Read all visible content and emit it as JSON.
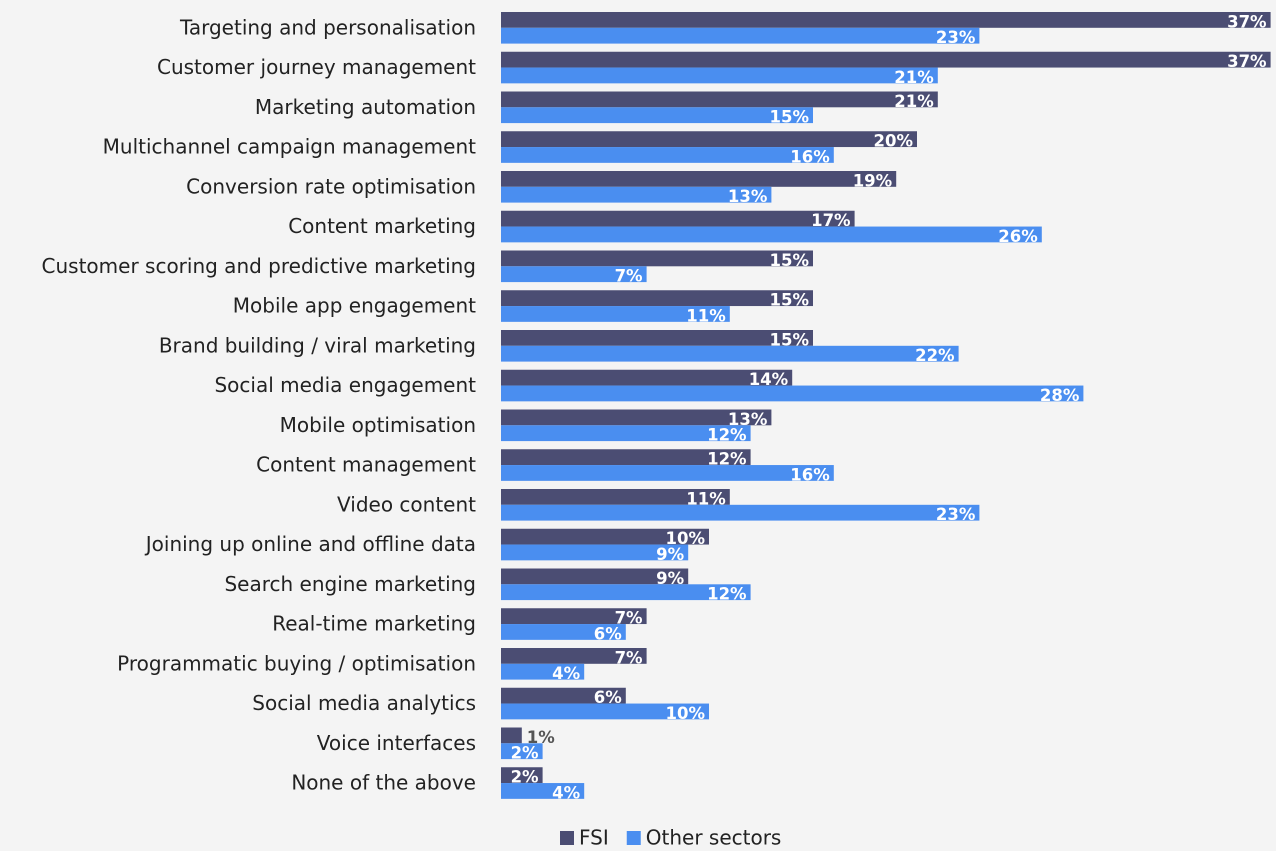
{
  "chart_data": {
    "type": "barh",
    "categories": [
      "Targeting and personalisation",
      "Customer journey management",
      "Marketing automation",
      "Multichannel campaign management",
      "Conversion rate optimisation",
      "Content marketing",
      "Customer scoring and predictive marketing",
      "Mobile app engagement",
      "Brand building / viral marketing",
      "Social media engagement",
      "Mobile optimisation",
      "Content management",
      "Video content",
      "Joining up online and offline data",
      "Search engine marketing",
      "Real-time marketing",
      "Programmatic buying / optimisation",
      "Social media analytics",
      "Voice interfaces",
      "None of the above"
    ],
    "series": [
      {
        "name": "FSI",
        "color": "#4b4d73",
        "values": [
          37,
          37,
          21,
          20,
          19,
          17,
          15,
          15,
          15,
          14,
          13,
          12,
          11,
          10,
          9,
          7,
          7,
          6,
          1,
          2
        ],
        "value_labels": [
          "37%",
          "37%",
          "21%",
          "20%",
          "19%",
          "17%",
          "15%",
          "15%",
          "15%",
          "14%",
          "13%",
          "12%",
          "11%",
          "10%",
          "9%",
          "7%",
          "7%",
          "6%",
          "1%",
          "2%"
        ]
      },
      {
        "name": "Other sectors",
        "color": "#4a8ef0",
        "values": [
          23,
          21,
          15,
          16,
          13,
          26,
          7,
          11,
          22,
          28,
          12,
          16,
          23,
          9,
          12,
          6,
          4,
          10,
          2,
          4
        ],
        "value_labels": [
          "23%",
          "21%",
          "15%",
          "16%",
          "13%",
          "26%",
          "7%",
          "11%",
          "22%",
          "28%",
          "12%",
          "16%",
          "23%",
          "9%",
          "12%",
          "6%",
          "4%",
          "10%",
          "2%",
          "4%"
        ]
      }
    ],
    "legend": "bottom"
  }
}
